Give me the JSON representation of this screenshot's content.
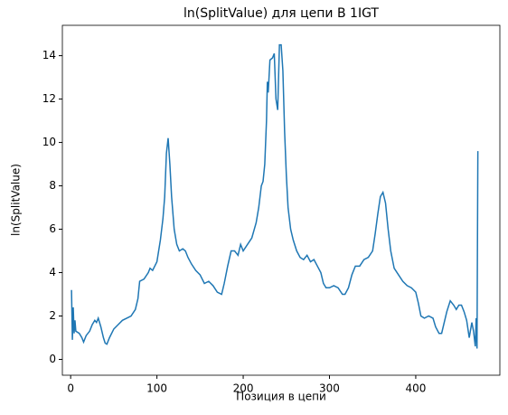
{
  "chart_data": {
    "type": "line",
    "title": "ln(SplitValue) для цепи B 1IGT",
    "x_label": "Позиция в цепи",
    "y_label": "ln(SplitValue)",
    "x": [
      1,
      2,
      3,
      4,
      5,
      6,
      10,
      13,
      15,
      18,
      22,
      25,
      28,
      30,
      32,
      35,
      38,
      40,
      42,
      45,
      50,
      55,
      60,
      65,
      70,
      75,
      78,
      80,
      85,
      90,
      92,
      95,
      100,
      104,
      107,
      109,
      111,
      113,
      115,
      117,
      120,
      123,
      126,
      130,
      133,
      136,
      140,
      145,
      150,
      155,
      160,
      165,
      170,
      175,
      178,
      182,
      186,
      190,
      194,
      197,
      200,
      205,
      210,
      215,
      218,
      221,
      223,
      225,
      227,
      228,
      229,
      231,
      234,
      236,
      238,
      240,
      242,
      244,
      246,
      248,
      250,
      252,
      255,
      258,
      262,
      266,
      270,
      274,
      278,
      282,
      286,
      290,
      293,
      296,
      300,
      305,
      310,
      315,
      318,
      322,
      326,
      330,
      335,
      340,
      345,
      350,
      353,
      356,
      359,
      362,
      365,
      368,
      371,
      375,
      380,
      385,
      390,
      395,
      400,
      403,
      406,
      410,
      415,
      420,
      423,
      427,
      430,
      433,
      436,
      440,
      444,
      447,
      450,
      453,
      456,
      459,
      462,
      465,
      467,
      469,
      470,
      471,
      472
    ],
    "series": [
      {
        "name": "ln(SplitValue)",
        "color": "#1f77b4",
        "values": [
          3.2,
          0.9,
          2.4,
          1.2,
          1.8,
          1.3,
          1.2,
          1.0,
          0.8,
          1.1,
          1.3,
          1.6,
          1.8,
          1.7,
          1.9,
          1.5,
          1.0,
          0.75,
          0.7,
          1.0,
          1.4,
          1.6,
          1.8,
          1.9,
          2.0,
          2.3,
          2.8,
          3.6,
          3.7,
          4.0,
          4.2,
          4.1,
          4.5,
          5.5,
          6.5,
          7.5,
          9.5,
          10.2,
          9.0,
          7.5,
          6.0,
          5.3,
          5.0,
          5.1,
          5.0,
          4.7,
          4.4,
          4.1,
          3.9,
          3.5,
          3.6,
          3.4,
          3.1,
          3.0,
          3.5,
          4.3,
          5.0,
          5.0,
          4.8,
          5.3,
          5.0,
          5.3,
          5.6,
          6.3,
          7.0,
          8.0,
          8.2,
          9.0,
          11.0,
          12.8,
          12.3,
          13.8,
          13.9,
          14.1,
          12.0,
          11.5,
          14.5,
          14.5,
          13.3,
          10.5,
          8.5,
          7.0,
          6.0,
          5.5,
          5.0,
          4.7,
          4.6,
          4.8,
          4.5,
          4.6,
          4.3,
          4.0,
          3.5,
          3.3,
          3.3,
          3.4,
          3.3,
          3.0,
          3.0,
          3.3,
          3.9,
          4.3,
          4.3,
          4.6,
          4.7,
          5.0,
          5.8,
          6.7,
          7.5,
          7.7,
          7.2,
          6.0,
          5.0,
          4.2,
          3.9,
          3.6,
          3.4,
          3.3,
          3.1,
          2.6,
          2.0,
          1.9,
          2.0,
          1.9,
          1.5,
          1.2,
          1.2,
          1.7,
          2.2,
          2.7,
          2.5,
          2.3,
          2.5,
          2.5,
          2.2,
          1.8,
          1.0,
          1.7,
          1.3,
          0.6,
          1.9,
          0.5,
          9.6
        ]
      }
    ],
    "xlim": [
      -9.6,
      497.5
    ],
    "ylim": [
      -0.73,
      15.4
    ],
    "xticks": [
      0,
      100,
      200,
      300,
      400
    ],
    "yticks": [
      0,
      2,
      4,
      6,
      8,
      10,
      12,
      14
    ]
  }
}
